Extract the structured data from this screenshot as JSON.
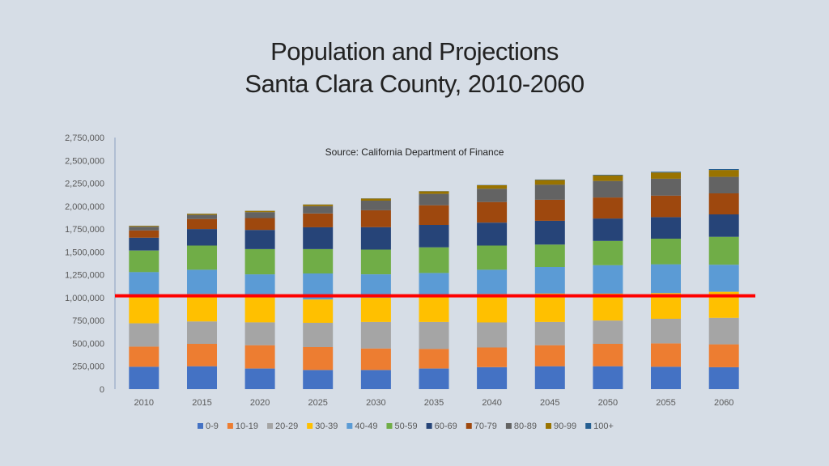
{
  "title": {
    "line1": "Population and Projections",
    "line2": "Santa Clara County, 2010-2060"
  },
  "chart_data": {
    "type": "bar",
    "stacked": true,
    "title": "Population and Projections Santa Clara County, 2010-2060",
    "annotation": "Source: California Department of Finance",
    "categories": [
      "2010",
      "2015",
      "2020",
      "2025",
      "2030",
      "2035",
      "2040",
      "2045",
      "2050",
      "2055",
      "2060"
    ],
    "ylim": [
      0,
      2750000
    ],
    "yticks": [
      0,
      250000,
      500000,
      750000,
      1000000,
      1250000,
      1500000,
      1750000,
      2000000,
      2250000,
      2500000,
      2750000
    ],
    "ytick_labels": [
      "0",
      "250,000",
      "500,000",
      "750,000",
      "1,000,000",
      "1,250,000",
      "1,500,000",
      "1,750,000",
      "2,000,000",
      "2,250,000",
      "2,500,000",
      "2,750,000"
    ],
    "legend_position": "bottom",
    "reference_line": {
      "value": 1020000,
      "color": "#ff0000"
    },
    "series": [
      {
        "name": "0-9",
        "color": "#4472c4",
        "values": [
          245000,
          250000,
          225000,
          210000,
          210000,
          225000,
          240000,
          250000,
          250000,
          245000,
          240000
        ]
      },
      {
        "name": "10-19",
        "color": "#ed7d31",
        "values": [
          220000,
          245000,
          255000,
          250000,
          235000,
          215000,
          215000,
          230000,
          245000,
          255000,
          250000
        ]
      },
      {
        "name": "20-29",
        "color": "#a5a5a5",
        "values": [
          255000,
          245000,
          250000,
          265000,
          290000,
          295000,
          275000,
          255000,
          255000,
          270000,
          290000
        ]
      },
      {
        "name": "30-39",
        "color": "#ffc000",
        "values": [
          295000,
          300000,
          285000,
          255000,
          265000,
          290000,
          310000,
          310000,
          295000,
          280000,
          285000
        ]
      },
      {
        "name": "40-49",
        "color": "#5b9bd5",
        "values": [
          265000,
          265000,
          240000,
          285000,
          255000,
          245000,
          265000,
          290000,
          310000,
          315000,
          295000
        ]
      },
      {
        "name": "50-59",
        "color": "#70ad47",
        "values": [
          235000,
          265000,
          275000,
          265000,
          270000,
          280000,
          265000,
          245000,
          265000,
          280000,
          305000
        ]
      },
      {
        "name": "60-69",
        "color": "#264478",
        "values": [
          140000,
          180000,
          210000,
          240000,
          245000,
          245000,
          250000,
          260000,
          245000,
          235000,
          245000
        ]
      },
      {
        "name": "70-79",
        "color": "#9e480e",
        "values": [
          80000,
          110000,
          130000,
          150000,
          185000,
          215000,
          225000,
          230000,
          230000,
          235000,
          230000
        ]
      },
      {
        "name": "80-89",
        "color": "#636363",
        "values": [
          40000,
          45000,
          65000,
          80000,
          105000,
          125000,
          145000,
          165000,
          180000,
          185000,
          180000
        ]
      },
      {
        "name": "90-99",
        "color": "#997300",
        "values": [
          10000,
          12000,
          14000,
          18000,
          23000,
          28000,
          38000,
          52000,
          62000,
          68000,
          75000
        ]
      },
      {
        "name": "100+",
        "color": "#255e91",
        "values": [
          1000,
          1000,
          1000,
          1000,
          1500,
          2000,
          3000,
          4000,
          6000,
          8000,
          10000
        ]
      }
    ]
  }
}
